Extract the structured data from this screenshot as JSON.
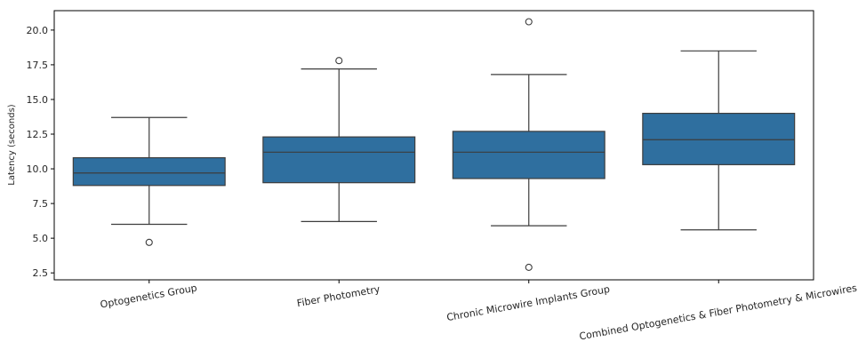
{
  "chart_data": {
    "type": "box",
    "title": "",
    "xlabel": "",
    "ylabel": "Latency (seconds)",
    "ylim": [
      2.0,
      21.4
    ],
    "yticks": [
      "2.5",
      "5.0",
      "7.5",
      "10.0",
      "12.5",
      "15.0",
      "17.5",
      "20.0"
    ],
    "grid": false,
    "box_color": "#2f6f9f",
    "line_color": "#3d3d3d",
    "categories": [
      "Optogenetics Group",
      "Fiber Photometry",
      "Chronic Microwire Implants Group",
      "Combined Optogenetics & Fiber Photometry & Microwires"
    ],
    "boxes": [
      {
        "whisker_low": 6.0,
        "q1": 8.8,
        "median": 9.7,
        "q3": 10.8,
        "whisker_high": 13.7,
        "outliers": [
          4.7
        ]
      },
      {
        "whisker_low": 6.2,
        "q1": 9.0,
        "median": 11.2,
        "q3": 12.3,
        "whisker_high": 17.2,
        "outliers": [
          17.8
        ]
      },
      {
        "whisker_low": 5.9,
        "q1": 9.3,
        "median": 11.2,
        "q3": 12.7,
        "whisker_high": 16.8,
        "outliers": [
          20.6,
          2.9
        ]
      },
      {
        "whisker_low": 5.6,
        "q1": 10.3,
        "median": 12.1,
        "q3": 14.0,
        "whisker_high": 18.5,
        "outliers": []
      }
    ]
  }
}
